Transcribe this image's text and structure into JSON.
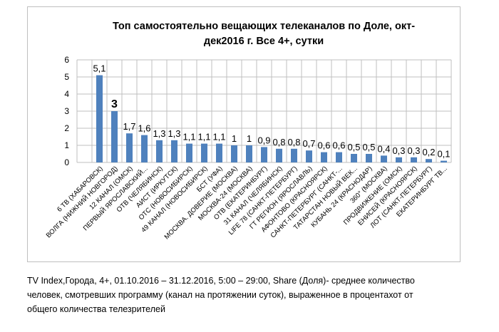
{
  "chart_data": {
    "type": "bar",
    "title": "Топ самостоятельно вещающих телеканалов по Доле, окт-дек2016 г. Все 4+, сутки",
    "title_lines": [
      "Топ самостоятельно вещающих телеканалов по Доле, окт-",
      "дек2016 г. Все 4+, сутки"
    ],
    "categories": [
      "6 ТВ (ХАБАРОВСК)",
      "ВОЛГА (НИЖНИЙ НОВГОРОД)",
      "12 КАНАЛ (ОМСК)",
      "ПЕРВЫЙ ЯРОСЛАВСКИЙ...",
      "ОТВ (ЧЕЛЯБИНСК)",
      "АИСТ (ИРКУТСК)",
      "ОТС (НОВОСИБИРСК)",
      "49 КАНАЛ (НОВОСИБИРСК)",
      "БСТ (УФА)",
      "МОСКВА. ДОВЕРИЕ (МОСКВА)",
      "МОСКВА-24 (МОСКВА)",
      "ОТВ (ЕКАТЕРИНБУРГ)",
      "31 КАНАЛ (ЧЕЛЯБИНСК)",
      "LIFE 78 (САНКТ-ПЕТЕРБУРГ)",
      "ГТ РЕГИОН (ЯРОСЛАВЛЬ)",
      "АФОНТОВО (КРАСНОЯРСК)",
      "САНКТ-ПЕТЕРБУРГ (САНКТ-...",
      "ТАТАРСТАН НОВЫЙ ВЕК...",
      "КУБАНЬ 24 (КРАСНОДАР)",
      "360° (МОСКВА)",
      "ПРОДВИЖЕНИЕ (ОМСК)",
      "ЕНИСЕЙ (КРАСНОЯРСК)",
      "ЛОТ (САНКТ-ПЕТЕРБУРГ)",
      "ЕКАТЕРИНБУРГ ТВ..."
    ],
    "values": [
      5.1,
      3,
      1.7,
      1.6,
      1.3,
      1.3,
      1.1,
      1.1,
      1.1,
      1,
      1,
      0.9,
      0.8,
      0.8,
      0.7,
      0.6,
      0.6,
      0.5,
      0.5,
      0.4,
      0.3,
      0.3,
      0.2,
      0.1
    ],
    "data_labels": [
      "5,1",
      "3",
      "1,7",
      "1,6",
      "1,3",
      "1,3",
      "1,1",
      "1,1",
      "1,1",
      "1",
      "1",
      "0,9",
      "0,8",
      "0,8",
      "0,7",
      "0,6",
      "0,6",
      "0,5",
      "0,5",
      "0,4",
      "0,3",
      "0,3",
      "0,2",
      "0,1"
    ],
    "y_ticks": [
      "0",
      "1",
      "2",
      "3",
      "4",
      "5",
      "6"
    ],
    "ylim": [
      0,
      6
    ],
    "xlabel": "",
    "ylabel": "",
    "grid": true,
    "bar_color": "#4f81bd"
  },
  "caption": {
    "lines": [
      "TV Index,Города,  4+, 01.10.2016 – 31.12.2016, 5:00 – 29:00, Share  (Доля)- среднее количество",
      "человек, смотревших программу (канал на протяжении суток), выраженное в процентахот от",
      "общего количества телезрителей"
    ]
  }
}
